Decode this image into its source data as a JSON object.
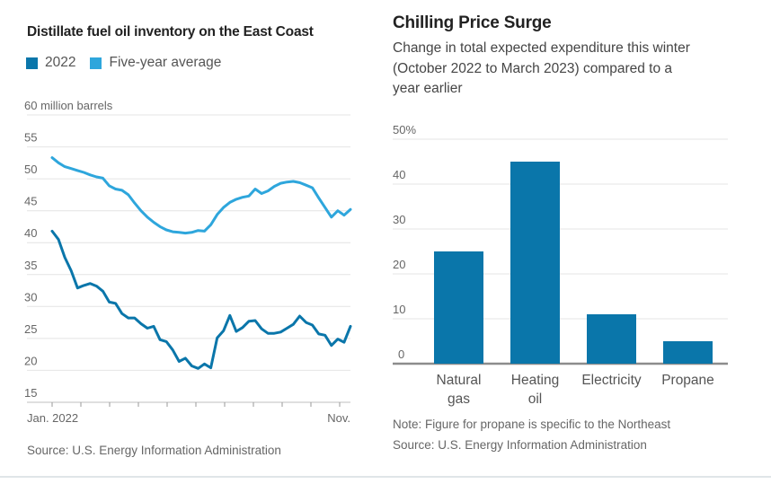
{
  "page": {
    "background": "#ffffff",
    "divider_color": "#e0e5e8"
  },
  "colors": {
    "dark_blue": "#0a76aa",
    "light_blue": "#2ea6dc",
    "grid": "#e4e4e4",
    "baseline_left": "#bfbfbf",
    "baseline_right": "#8c8c8c"
  },
  "chart_data": [
    {
      "id": "inventory",
      "type": "line",
      "title": "Distillate fuel oil inventory on the East Coast",
      "unit_label": "60 million barrels",
      "legend_position": "top",
      "grid": true,
      "ylim": [
        15,
        60
      ],
      "yticks": [
        15,
        20,
        25,
        30,
        35,
        40,
        45,
        50,
        55,
        60
      ],
      "x_start_label": "Jan. 2022",
      "x_end_label": "Nov.",
      "x_month_ticks": 11,
      "series": [
        {
          "name": "2022",
          "color": "#0a76aa",
          "values": [
            41.8,
            40.5,
            37.7,
            35.6,
            32.9,
            33.3,
            33.6,
            33.2,
            32.4,
            30.7,
            30.5,
            28.9,
            28.2,
            28.2,
            27.3,
            26.6,
            26.9,
            24.8,
            24.5,
            23.2,
            21.4,
            21.9,
            20.7,
            20.3,
            21.0,
            20.4,
            25.1,
            26.2,
            28.6,
            26.1,
            26.7,
            27.7,
            27.8,
            26.5,
            25.8,
            25.8,
            26.0,
            26.6,
            27.2,
            28.5,
            27.5,
            27.1,
            25.7,
            25.5,
            23.9,
            24.9,
            24.4,
            26.9
          ]
        },
        {
          "name": "Five-year average",
          "color": "#2ea6dc",
          "values": [
            53.3,
            52.5,
            51.9,
            51.6,
            51.3,
            51.0,
            50.6,
            50.3,
            50.1,
            48.9,
            48.4,
            48.2,
            47.5,
            46.2,
            45.0,
            44.0,
            43.2,
            42.5,
            42.0,
            41.7,
            41.6,
            41.5,
            41.6,
            41.9,
            41.8,
            42.8,
            44.4,
            45.5,
            46.3,
            46.8,
            47.1,
            47.3,
            48.4,
            47.7,
            48.1,
            48.8,
            49.3,
            49.5,
            49.6,
            49.4,
            49.0,
            48.6,
            47.0,
            45.5,
            44.0,
            45.0,
            44.3,
            45.2
          ]
        }
      ],
      "source": "Source: U.S. Energy Information Administration"
    },
    {
      "id": "price-surge",
      "type": "bar",
      "title": "Chilling Price Surge",
      "subtitle": "Change in total expected expenditure this winter (October 2022 to March 2023) compared to a year earlier",
      "categories": [
        "Natural gas",
        "Heating oil",
        "Electricity",
        "Propane"
      ],
      "values": [
        25,
        45,
        11,
        5
      ],
      "bar_color": "#0a76aa",
      "grid": true,
      "ylim": [
        0,
        50
      ],
      "yticks": [
        0,
        10,
        20,
        30,
        40,
        50
      ],
      "ytick_labels": [
        "0",
        "10",
        "20",
        "30",
        "40",
        "50%"
      ],
      "note": "Note: Figure for propane is specific to the Northeast",
      "source": "Source: U.S. Energy Information Administration"
    }
  ]
}
